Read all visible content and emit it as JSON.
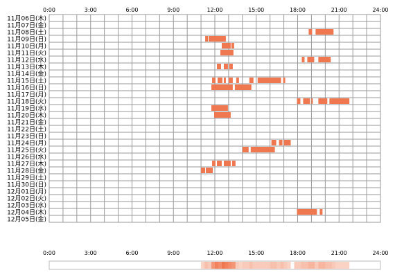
{
  "chart_data": {
    "type": "timeline",
    "x_unit": "hour",
    "xlim": [
      0,
      24
    ],
    "x_ticks": [
      "0:00",
      "3:00",
      "6:00",
      "9:00",
      "12:00",
      "15:00",
      "18:00",
      "21:00",
      "24:00"
    ],
    "grid": true,
    "rows": [
      {
        "label": "11月06日(木)",
        "segments": []
      },
      {
        "label": "11月07日(金)",
        "segments": []
      },
      {
        "label": "11月08日(土)",
        "segments": [
          [
            18.8,
            19.05
          ],
          [
            19.3,
            20.6
          ]
        ]
      },
      {
        "label": "11月09日(日)",
        "segments": [
          [
            11.3,
            11.5
          ],
          [
            11.55,
            12.8
          ]
        ]
      },
      {
        "label": "11月10日(月)",
        "segments": [
          [
            12.5,
            13.15
          ],
          [
            13.2,
            13.4
          ]
        ]
      },
      {
        "label": "11月11日(火)",
        "segments": [
          [
            12.4,
            13.35
          ]
        ]
      },
      {
        "label": "11月12日(水)",
        "segments": [
          [
            18.3,
            18.5
          ],
          [
            18.7,
            19.2
          ],
          [
            19.5,
            20.4
          ]
        ]
      },
      {
        "label": "11月13日(木)",
        "segments": [
          [
            12.15,
            12.45
          ],
          [
            12.65,
            12.95
          ],
          [
            13.05,
            13.3
          ]
        ]
      },
      {
        "label": "11月14日(金)",
        "segments": []
      },
      {
        "label": "11月15日(土)",
        "segments": [
          [
            11.8,
            12.05
          ],
          [
            12.2,
            12.55
          ],
          [
            12.65,
            12.8
          ],
          [
            13.0,
            13.3
          ],
          [
            13.55,
            13.75
          ],
          [
            14.5,
            14.8
          ],
          [
            15.1,
            16.8
          ],
          [
            16.95,
            17.1
          ]
        ]
      },
      {
        "label": "11月16日(日)",
        "segments": [
          [
            11.75,
            13.3
          ],
          [
            13.45,
            14.65
          ]
        ]
      },
      {
        "label": "11月17日(月)",
        "segments": []
      },
      {
        "label": "11月18日(火)",
        "segments": [
          [
            17.95,
            18.2
          ],
          [
            18.4,
            18.9
          ],
          [
            19.0,
            19.1
          ],
          [
            19.5,
            20.15
          ],
          [
            20.3,
            21.75
          ]
        ]
      },
      {
        "label": "11月19日(水)",
        "segments": [
          [
            11.75,
            12.95
          ]
        ]
      },
      {
        "label": "11月20日(木)",
        "segments": [
          [
            11.95,
            13.15
          ]
        ]
      },
      {
        "label": "11月21日(金)",
        "segments": []
      },
      {
        "label": "11月22日(土)",
        "segments": []
      },
      {
        "label": "11月23日(日)",
        "segments": []
      },
      {
        "label": "11月24日(月)",
        "segments": [
          [
            16.1,
            16.45
          ],
          [
            16.65,
            16.9
          ],
          [
            17.0,
            17.5
          ]
        ]
      },
      {
        "label": "11月25日(火)",
        "segments": [
          [
            14.0,
            14.45
          ],
          [
            14.6,
            16.35
          ]
        ]
      },
      {
        "label": "11月26日(水)",
        "segments": []
      },
      {
        "label": "11月27日(木)",
        "segments": [
          [
            11.8,
            12.05
          ],
          [
            12.15,
            12.5
          ],
          [
            12.65,
            13.15
          ],
          [
            13.25,
            13.5
          ]
        ]
      },
      {
        "label": "11月28日(金)",
        "segments": [
          [
            11.0,
            11.3
          ],
          [
            11.35,
            11.85
          ]
        ]
      },
      {
        "label": "11月29日(土)",
        "segments": []
      },
      {
        "label": "11月30日(日)",
        "segments": []
      },
      {
        "label": "12月01日(月)",
        "segments": []
      },
      {
        "label": "12月02日(火)",
        "segments": []
      },
      {
        "label": "12月03日(水)",
        "segments": []
      },
      {
        "label": "12月04日(木)",
        "segments": [
          [
            17.95,
            19.4
          ],
          [
            19.6,
            19.8
          ]
        ]
      },
      {
        "label": "12月05日(金)",
        "segments": []
      }
    ],
    "colors": {
      "bar": "#f07850",
      "bar_dark": "#d85a3a",
      "grid": "#999999",
      "grid_fill": "#ffffff",
      "summary_low": "#fde7df",
      "summary_high": "#f07850"
    }
  }
}
